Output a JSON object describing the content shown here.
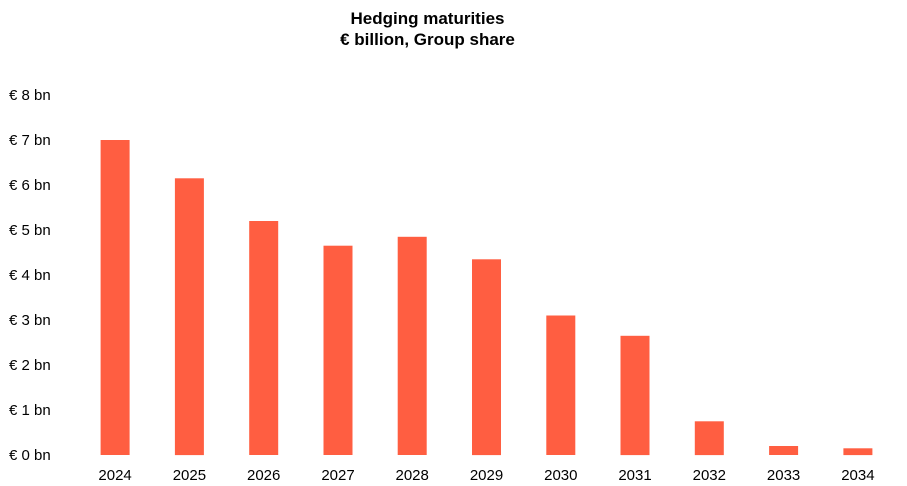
{
  "chart_data": {
    "type": "bar",
    "title": "Hedging maturities",
    "subtitle": "€ billion,  Group share",
    "categories": [
      "2024",
      "2025",
      "2026",
      "2027",
      "2028",
      "2029",
      "2030",
      "2031",
      "2032",
      "2033",
      "2034"
    ],
    "values": [
      7.0,
      6.15,
      5.2,
      4.65,
      4.85,
      4.35,
      3.1,
      2.65,
      0.75,
      0.2,
      0.15
    ],
    "ylim": [
      0,
      8
    ],
    "ytick_labels": [
      "€ 0 bn",
      "€ 1 bn",
      "€ 2 bn",
      "€ 3 bn",
      "€ 4 bn",
      "€ 5 bn",
      "€ 6 bn",
      "€ 7 bn",
      "€ 8 bn"
    ],
    "xlabel": "",
    "ylabel": "",
    "grid": false,
    "legend": "none",
    "bar_color": "#FF5E41"
  }
}
